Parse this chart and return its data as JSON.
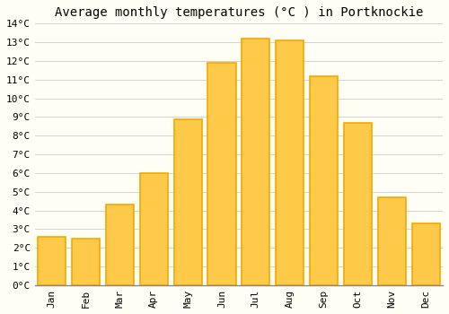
{
  "title": "Average monthly temperatures (°C ) in Portknockie",
  "months": [
    "Jan",
    "Feb",
    "Mar",
    "Apr",
    "May",
    "Jun",
    "Jul",
    "Aug",
    "Sep",
    "Oct",
    "Nov",
    "Dec"
  ],
  "temperatures": [
    2.6,
    2.5,
    4.3,
    6.0,
    8.9,
    11.9,
    13.2,
    13.1,
    11.2,
    8.7,
    4.7,
    3.3
  ],
  "bar_color_light": "#FFCA4A",
  "bar_color_dark": "#F5A800",
  "background_color": "#FFFEF5",
  "grid_color": "#CCCCCC",
  "title_fontsize": 10,
  "tick_fontsize": 8,
  "ylim": [
    0,
    14
  ],
  "yticks": [
    0,
    1,
    2,
    3,
    4,
    5,
    6,
    7,
    8,
    9,
    10,
    11,
    12,
    13,
    14
  ],
  "bar_width": 0.82
}
